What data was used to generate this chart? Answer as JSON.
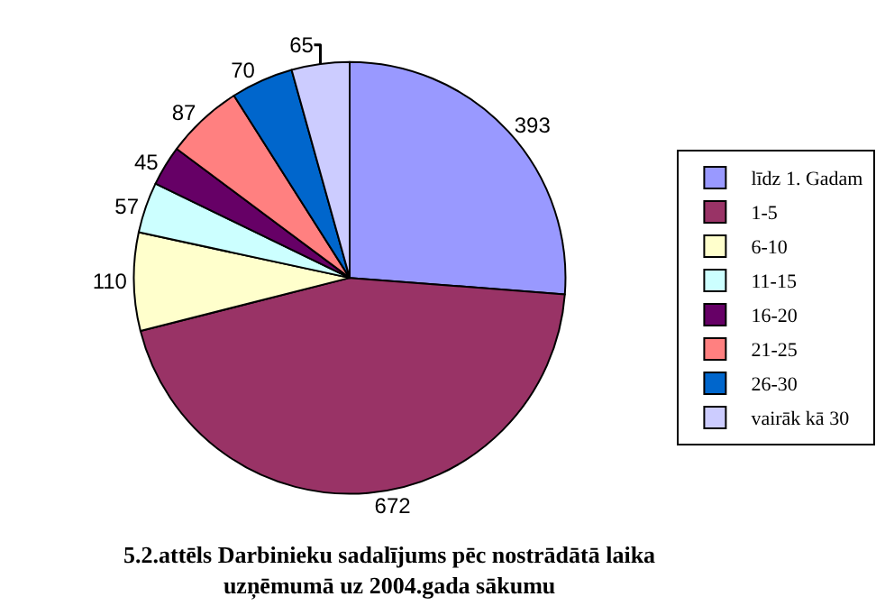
{
  "chart_data": {
    "type": "pie",
    "title": "5.2.attēls Darbinieku sadalījums pēc nostrādātā laika\nuzņēmumā uz 2004.gada sākumu",
    "categories": [
      "līdz 1. Gadam",
      "1-5",
      "6-10",
      "11-15",
      "16-20",
      "21-25",
      "26-30",
      "vairāk kā 30"
    ],
    "values": [
      393,
      672,
      110,
      57,
      45,
      87,
      70,
      65
    ],
    "colors": [
      "#9999ff",
      "#993366",
      "#ffffcc",
      "#ccffff",
      "#660066",
      "#ff8080",
      "#0066cc",
      "#ccccff"
    ],
    "data_labels": true,
    "legend": "right"
  }
}
